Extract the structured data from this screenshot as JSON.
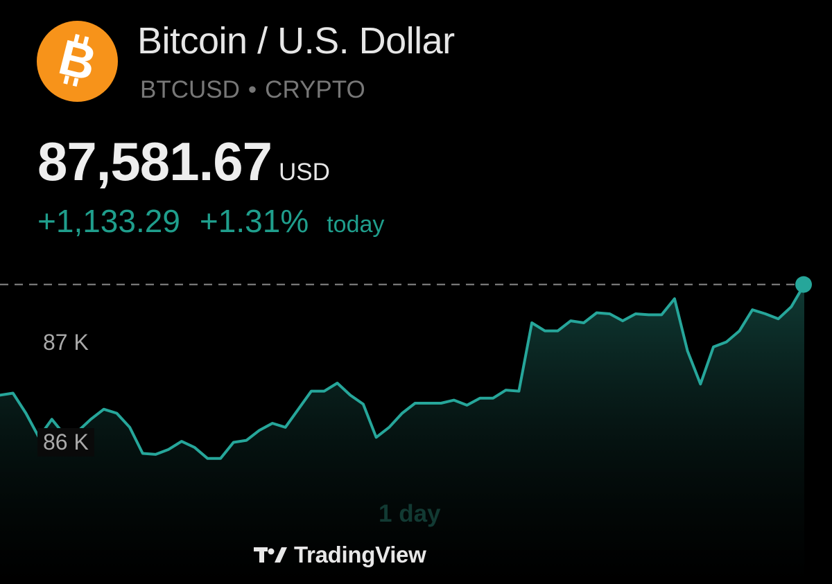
{
  "header": {
    "logo_icon": "bitcoin-logo-icon",
    "title": "Bitcoin / U.S. Dollar",
    "symbol": "BTCUSD",
    "separator": "•",
    "market": "CRYPTO"
  },
  "quote": {
    "price": "87,581.67",
    "currency": "USD",
    "change_abs": "+1,133.29",
    "change_pct": "+1.31%",
    "period": "today"
  },
  "colors": {
    "line": "#26a69a",
    "positive": "#1f9e8c",
    "bitcoin_orange": "#f7931a"
  },
  "range_label": "1 day",
  "brand": {
    "icon": "tradingview-logo-icon",
    "name": "TradingView"
  },
  "chart_data": {
    "type": "area",
    "title": "",
    "xlabel": "",
    "ylabel": "",
    "y_ticks": [
      {
        "value": 87000,
        "label": "87 K"
      },
      {
        "value": 86000,
        "label": "86 K"
      }
    ],
    "ylim": [
      85400,
      87800
    ],
    "current_value": 87581.67,
    "reference_line": "dashed at current price",
    "grid": false,
    "series": [
      {
        "values": [
          86480,
          86500,
          86300,
          86060,
          86240,
          86080,
          86120,
          86240,
          86340,
          86300,
          86160,
          85900,
          85890,
          85940,
          86020,
          85960,
          85850,
          85850,
          86010,
          86030,
          86130,
          86200,
          86160,
          86340,
          86520,
          86520,
          86600,
          86480,
          86390,
          86060,
          86160,
          86300,
          86400,
          86400,
          86400,
          86430,
          86380,
          86450,
          86450,
          86530,
          86520,
          87200,
          87120,
          87120,
          87220,
          87200,
          87300,
          87290,
          87220,
          87290,
          87280,
          87280,
          87440,
          86920,
          86590,
          86960,
          87010,
          87120,
          87330,
          87290,
          87240,
          87360,
          87581.67
        ]
      }
    ]
  }
}
